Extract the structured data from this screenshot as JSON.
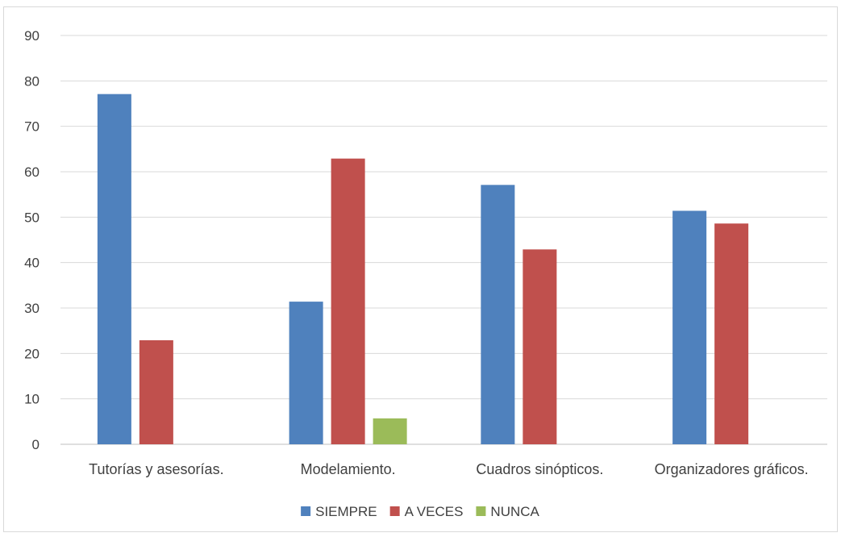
{
  "chart_data": {
    "type": "bar",
    "title": "",
    "xlabel": "",
    "ylabel": "",
    "categories": [
      "Tutorías y asesorías.",
      "Modelamiento.",
      "Cuadros sinópticos.",
      "Organizadores gráficos."
    ],
    "series": [
      {
        "name": "SIEMPRE",
        "color": "#4f81bd",
        "values": [
          77.1,
          31.4,
          57.1,
          51.4
        ]
      },
      {
        "name": "A VECES",
        "color": "#c0504d",
        "values": [
          22.9,
          62.9,
          42.9,
          48.6
        ]
      },
      {
        "name": "NUNCA",
        "color": "#9bbb59",
        "values": [
          0,
          5.7,
          0,
          0
        ]
      }
    ],
    "ylim": [
      0,
      90
    ],
    "yticks": [
      0,
      10,
      20,
      30,
      40,
      50,
      60,
      70,
      80,
      90
    ],
    "grid": true,
    "legend_position": "bottom"
  }
}
